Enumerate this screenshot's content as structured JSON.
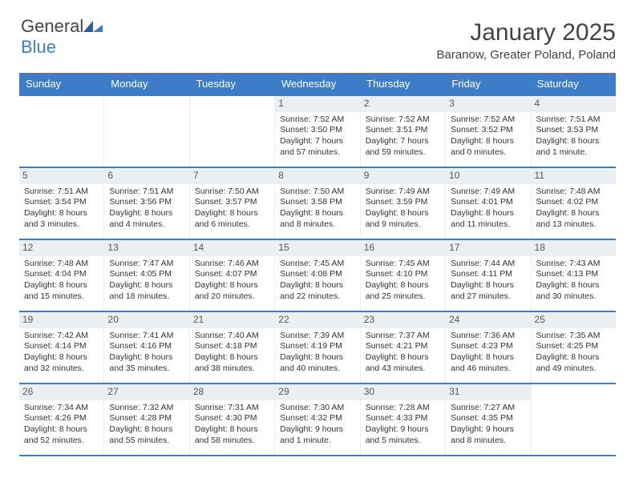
{
  "brand": {
    "name_part1": "General",
    "name_part2": "Blue"
  },
  "colors": {
    "header_bg": "#3d7cc9",
    "header_text": "#ffffff",
    "week_border": "#3d7cc9",
    "daynum_bg": "#eceff1",
    "body_text": "#333333"
  },
  "header": {
    "title": "January 2025",
    "location": "Baranow, Greater Poland, Poland"
  },
  "weekdays": [
    "Sunday",
    "Monday",
    "Tuesday",
    "Wednesday",
    "Thursday",
    "Friday",
    "Saturday"
  ],
  "weeks": [
    [
      null,
      null,
      null,
      {
        "n": "1",
        "sr": "Sunrise: 7:52 AM",
        "ss": "Sunset: 3:50 PM",
        "d1": "Daylight: 7 hours",
        "d2": "and 57 minutes."
      },
      {
        "n": "2",
        "sr": "Sunrise: 7:52 AM",
        "ss": "Sunset: 3:51 PM",
        "d1": "Daylight: 7 hours",
        "d2": "and 59 minutes."
      },
      {
        "n": "3",
        "sr": "Sunrise: 7:52 AM",
        "ss": "Sunset: 3:52 PM",
        "d1": "Daylight: 8 hours",
        "d2": "and 0 minutes."
      },
      {
        "n": "4",
        "sr": "Sunrise: 7:51 AM",
        "ss": "Sunset: 3:53 PM",
        "d1": "Daylight: 8 hours",
        "d2": "and 1 minute."
      }
    ],
    [
      {
        "n": "5",
        "sr": "Sunrise: 7:51 AM",
        "ss": "Sunset: 3:54 PM",
        "d1": "Daylight: 8 hours",
        "d2": "and 3 minutes."
      },
      {
        "n": "6",
        "sr": "Sunrise: 7:51 AM",
        "ss": "Sunset: 3:56 PM",
        "d1": "Daylight: 8 hours",
        "d2": "and 4 minutes."
      },
      {
        "n": "7",
        "sr": "Sunrise: 7:50 AM",
        "ss": "Sunset: 3:57 PM",
        "d1": "Daylight: 8 hours",
        "d2": "and 6 minutes."
      },
      {
        "n": "8",
        "sr": "Sunrise: 7:50 AM",
        "ss": "Sunset: 3:58 PM",
        "d1": "Daylight: 8 hours",
        "d2": "and 8 minutes."
      },
      {
        "n": "9",
        "sr": "Sunrise: 7:49 AM",
        "ss": "Sunset: 3:59 PM",
        "d1": "Daylight: 8 hours",
        "d2": "and 9 minutes."
      },
      {
        "n": "10",
        "sr": "Sunrise: 7:49 AM",
        "ss": "Sunset: 4:01 PM",
        "d1": "Daylight: 8 hours",
        "d2": "and 11 minutes."
      },
      {
        "n": "11",
        "sr": "Sunrise: 7:48 AM",
        "ss": "Sunset: 4:02 PM",
        "d1": "Daylight: 8 hours",
        "d2": "and 13 minutes."
      }
    ],
    [
      {
        "n": "12",
        "sr": "Sunrise: 7:48 AM",
        "ss": "Sunset: 4:04 PM",
        "d1": "Daylight: 8 hours",
        "d2": "and 15 minutes."
      },
      {
        "n": "13",
        "sr": "Sunrise: 7:47 AM",
        "ss": "Sunset: 4:05 PM",
        "d1": "Daylight: 8 hours",
        "d2": "and 18 minutes."
      },
      {
        "n": "14",
        "sr": "Sunrise: 7:46 AM",
        "ss": "Sunset: 4:07 PM",
        "d1": "Daylight: 8 hours",
        "d2": "and 20 minutes."
      },
      {
        "n": "15",
        "sr": "Sunrise: 7:45 AM",
        "ss": "Sunset: 4:08 PM",
        "d1": "Daylight: 8 hours",
        "d2": "and 22 minutes."
      },
      {
        "n": "16",
        "sr": "Sunrise: 7:45 AM",
        "ss": "Sunset: 4:10 PM",
        "d1": "Daylight: 8 hours",
        "d2": "and 25 minutes."
      },
      {
        "n": "17",
        "sr": "Sunrise: 7:44 AM",
        "ss": "Sunset: 4:11 PM",
        "d1": "Daylight: 8 hours",
        "d2": "and 27 minutes."
      },
      {
        "n": "18",
        "sr": "Sunrise: 7:43 AM",
        "ss": "Sunset: 4:13 PM",
        "d1": "Daylight: 8 hours",
        "d2": "and 30 minutes."
      }
    ],
    [
      {
        "n": "19",
        "sr": "Sunrise: 7:42 AM",
        "ss": "Sunset: 4:14 PM",
        "d1": "Daylight: 8 hours",
        "d2": "and 32 minutes."
      },
      {
        "n": "20",
        "sr": "Sunrise: 7:41 AM",
        "ss": "Sunset: 4:16 PM",
        "d1": "Daylight: 8 hours",
        "d2": "and 35 minutes."
      },
      {
        "n": "21",
        "sr": "Sunrise: 7:40 AM",
        "ss": "Sunset: 4:18 PM",
        "d1": "Daylight: 8 hours",
        "d2": "and 38 minutes."
      },
      {
        "n": "22",
        "sr": "Sunrise: 7:39 AM",
        "ss": "Sunset: 4:19 PM",
        "d1": "Daylight: 8 hours",
        "d2": "and 40 minutes."
      },
      {
        "n": "23",
        "sr": "Sunrise: 7:37 AM",
        "ss": "Sunset: 4:21 PM",
        "d1": "Daylight: 8 hours",
        "d2": "and 43 minutes."
      },
      {
        "n": "24",
        "sr": "Sunrise: 7:36 AM",
        "ss": "Sunset: 4:23 PM",
        "d1": "Daylight: 8 hours",
        "d2": "and 46 minutes."
      },
      {
        "n": "25",
        "sr": "Sunrise: 7:35 AM",
        "ss": "Sunset: 4:25 PM",
        "d1": "Daylight: 8 hours",
        "d2": "and 49 minutes."
      }
    ],
    [
      {
        "n": "26",
        "sr": "Sunrise: 7:34 AM",
        "ss": "Sunset: 4:26 PM",
        "d1": "Daylight: 8 hours",
        "d2": "and 52 minutes."
      },
      {
        "n": "27",
        "sr": "Sunrise: 7:32 AM",
        "ss": "Sunset: 4:28 PM",
        "d1": "Daylight: 8 hours",
        "d2": "and 55 minutes."
      },
      {
        "n": "28",
        "sr": "Sunrise: 7:31 AM",
        "ss": "Sunset: 4:30 PM",
        "d1": "Daylight: 8 hours",
        "d2": "and 58 minutes."
      },
      {
        "n": "29",
        "sr": "Sunrise: 7:30 AM",
        "ss": "Sunset: 4:32 PM",
        "d1": "Daylight: 9 hours",
        "d2": "and 1 minute."
      },
      {
        "n": "30",
        "sr": "Sunrise: 7:28 AM",
        "ss": "Sunset: 4:33 PM",
        "d1": "Daylight: 9 hours",
        "d2": "and 5 minutes."
      },
      {
        "n": "31",
        "sr": "Sunrise: 7:27 AM",
        "ss": "Sunset: 4:35 PM",
        "d1": "Daylight: 9 hours",
        "d2": "and 8 minutes."
      },
      null
    ]
  ]
}
